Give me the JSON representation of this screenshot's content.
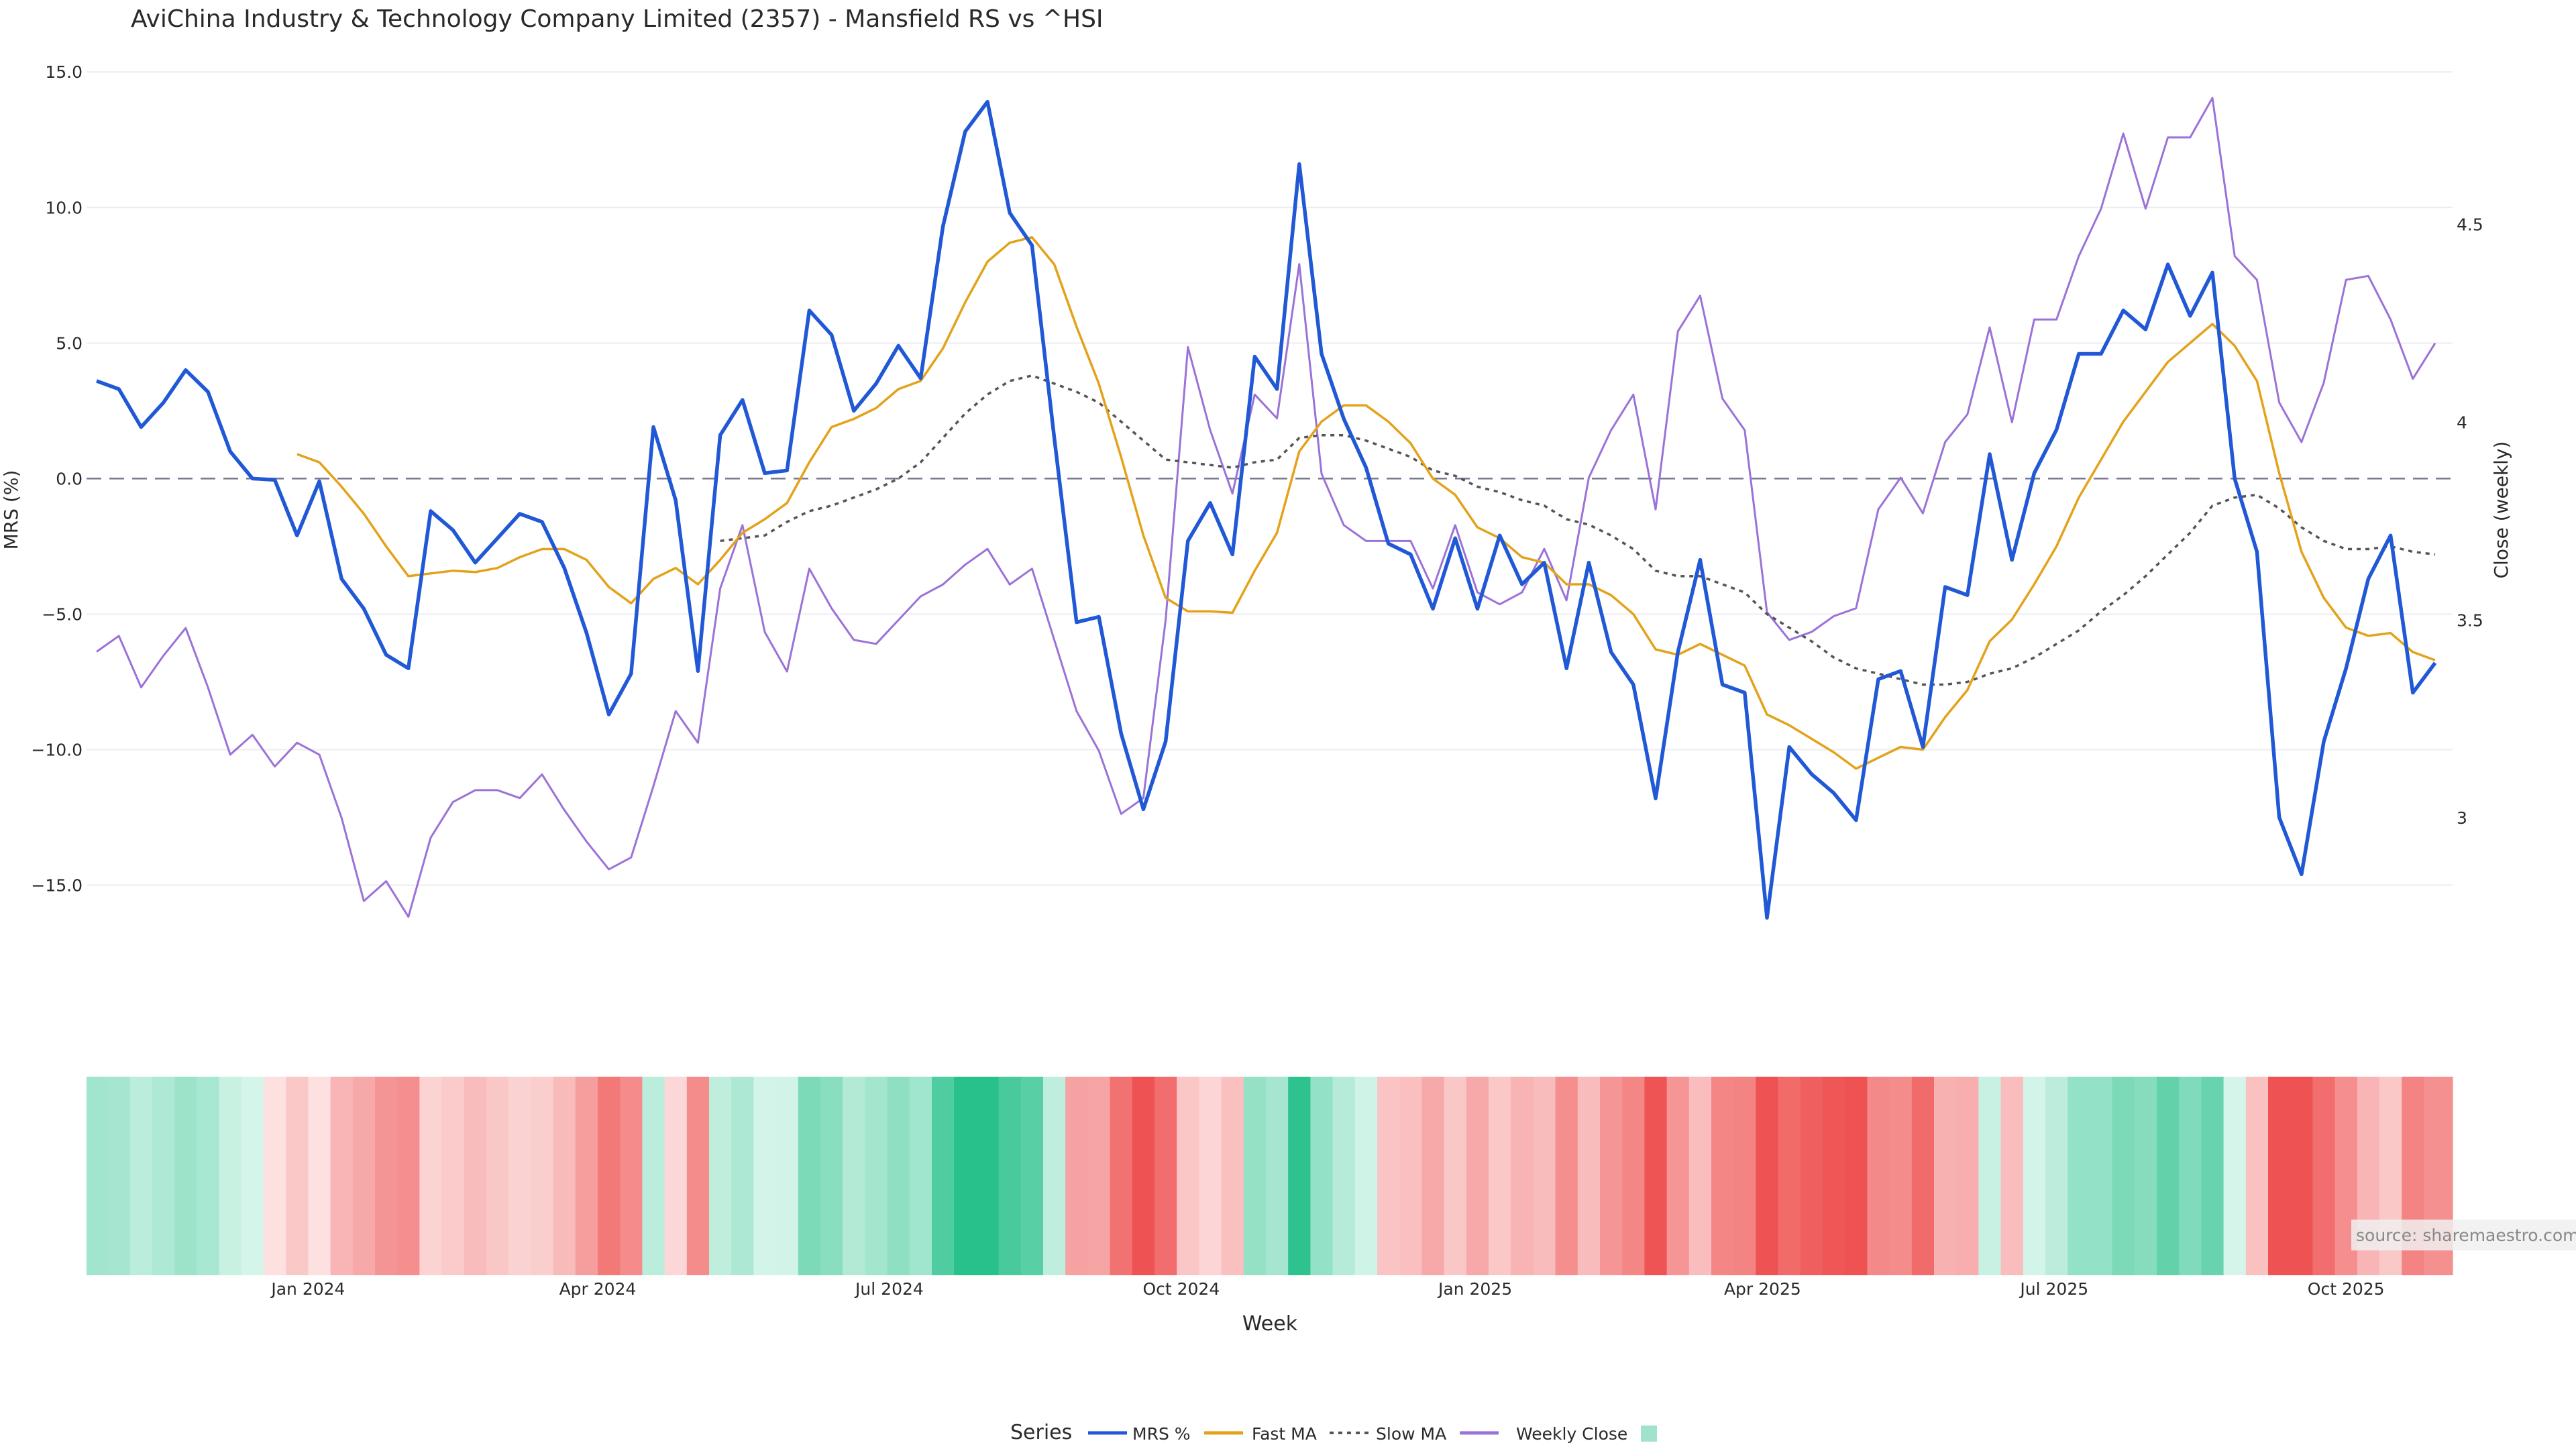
{
  "chart_data": {
    "type": "line",
    "title": "AviChina Industry & Technology Company Limited (2357) - Mansfield RS vs ^HSI",
    "xlabel": "Week",
    "ylabel": "MRS (%)",
    "y2label": "Close (weekly)",
    "ylim": [
      -18.5,
      15.5
    ],
    "y2lim": [
      2.59,
      4.92
    ],
    "yticks": [
      15.0,
      10.0,
      5.0,
      0.0,
      -5.0,
      -10.0,
      -15.0
    ],
    "ytick_labels": [
      "15.0",
      "10.0",
      "5.0",
      "0.0",
      "−5.0",
      "−10.0",
      "−15.0"
    ],
    "y2ticks": [
      4.5,
      4,
      3.5,
      3
    ],
    "y2tick_labels": [
      "4.5",
      "4",
      "3.5",
      "3"
    ],
    "xticks": [
      {
        "label": "Jan 2024",
        "week": 9.5
      },
      {
        "label": "Apr 2024",
        "week": 22.5
      },
      {
        "label": "Jul 2024",
        "week": 35.6
      },
      {
        "label": "Oct 2024",
        "week": 48.7
      },
      {
        "label": "Jan 2025",
        "week": 61.9
      },
      {
        "label": "Apr 2025",
        "week": 74.8
      },
      {
        "label": "Jul 2025",
        "week": 87.9
      },
      {
        "label": "Oct 2025",
        "week": 101.0
      }
    ],
    "zero_line": 0,
    "series": [
      {
        "name": "MRS %",
        "color": "#2158d6",
        "axis": "left",
        "values": [
          3.6,
          3.3,
          1.9,
          2.8,
          4.0,
          3.2,
          1.0,
          0.0,
          -0.05,
          -2.1,
          -0.1,
          -3.7,
          -4.8,
          -6.5,
          -7.0,
          -1.2,
          -1.9,
          -3.1,
          -2.2,
          -1.3,
          -1.6,
          -3.3,
          -5.7,
          -8.7,
          -7.2,
          1.9,
          -0.8,
          -7.1,
          1.6,
          2.9,
          0.2,
          0.3,
          6.2,
          5.3,
          2.5,
          3.5,
          4.9,
          3.7,
          9.3,
          12.8,
          13.9,
          9.8,
          8.6,
          1.5,
          -5.3,
          -5.1,
          -9.4,
          -12.2,
          -9.7,
          -2.3,
          -0.9,
          -2.8,
          4.5,
          3.3,
          11.6,
          4.6,
          2.2,
          0.4,
          -2.4,
          -2.8,
          -4.8,
          -2.2,
          -4.8,
          -2.1,
          -3.9,
          -3.1,
          -7.0,
          -3.1,
          -6.4,
          -7.6,
          -11.8,
          -6.4,
          -3.0,
          -7.6,
          -7.9,
          -16.2,
          -9.9,
          -10.9,
          -11.6,
          -12.6,
          -7.4,
          -7.1,
          -9.9,
          -4.0,
          -4.3,
          0.9,
          -3.0,
          0.2,
          1.8,
          4.6,
          4.6,
          6.2,
          5.5,
          7.9,
          6.0,
          7.6,
          0.0,
          -2.7,
          -12.5,
          -14.6,
          -9.7,
          -7.0,
          -3.7,
          -2.1,
          -7.9,
          -6.8
        ]
      },
      {
        "name": "Fast MA",
        "color": "#e3a21a",
        "axis": "left",
        "values": [
          0.9,
          0.6,
          -0.3,
          -1.3,
          -2.5,
          -3.6,
          -3.5,
          -3.4,
          -3.45,
          -3.3,
          -2.9,
          -2.6,
          -2.6,
          -3.0,
          -4.0,
          -4.6,
          -3.7,
          -3.3,
          -3.9,
          -3.0,
          -2.0,
          -1.5,
          -0.9,
          0.6,
          1.9,
          2.2,
          2.6,
          3.3,
          3.6,
          4.8,
          6.5,
          8.0,
          8.7,
          8.9,
          7.9,
          5.6,
          3.5,
          0.8,
          -2.1,
          -4.4,
          -4.9,
          -4.9,
          -4.95,
          -3.4,
          -2.0,
          1.0,
          2.1,
          2.7,
          2.7,
          2.1,
          1.3,
          0.0,
          -0.6,
          -1.8,
          -2.2,
          -2.9,
          -3.1,
          -3.9,
          -3.9,
          -4.3,
          -5.0,
          -6.3,
          -6.5,
          -6.1,
          -6.5,
          -6.9,
          -8.7,
          -9.1,
          -9.6,
          -10.1,
          -10.7,
          -10.3,
          -9.9,
          -10.0,
          -8.8,
          -7.8,
          -6.0,
          -5.2,
          -3.9,
          -2.5,
          -0.7,
          0.7,
          2.1,
          3.2,
          4.3,
          5.0,
          5.7,
          4.9,
          3.6,
          0.2,
          -2.7,
          -4.4,
          -5.5,
          -5.8,
          -5.7,
          -6.4,
          -6.7
        ]
      },
      {
        "name": "Slow MA",
        "color": "#555555",
        "axis": "left",
        "dash": true,
        "values": [
          -2.3,
          -2.2,
          -2.1,
          -1.6,
          -1.2,
          -1.0,
          -0.7,
          -0.4,
          0.0,
          0.6,
          1.5,
          2.4,
          3.1,
          3.6,
          3.8,
          3.5,
          3.2,
          2.8,
          2.1,
          1.4,
          0.7,
          0.6,
          0.5,
          0.4,
          0.6,
          0.7,
          1.5,
          1.6,
          1.6,
          1.4,
          1.1,
          0.8,
          0.3,
          0.1,
          -0.3,
          -0.5,
          -0.8,
          -1.0,
          -1.5,
          -1.7,
          -2.1,
          -2.6,
          -3.4,
          -3.6,
          -3.6,
          -3.9,
          -4.2,
          -5.0,
          -5.5,
          -6.0,
          -6.6,
          -7.0,
          -7.2,
          -7.4,
          -7.6,
          -7.6,
          -7.5,
          -7.2,
          -7.0,
          -6.6,
          -6.1,
          -5.6,
          -4.9,
          -4.3,
          -3.6,
          -2.8,
          -2.0,
          -1.0,
          -0.7,
          -0.6,
          -1.1,
          -1.8,
          -2.3,
          -2.6,
          -2.6,
          -2.5,
          -2.7,
          -2.8
        ]
      },
      {
        "name": "Weekly Close",
        "color": "#9b72d8",
        "axis": "right",
        "values": [
          3.42,
          3.46,
          3.33,
          3.41,
          3.48,
          3.33,
          3.16,
          3.21,
          3.13,
          3.19,
          3.16,
          3.0,
          2.79,
          2.84,
          2.75,
          2.95,
          3.04,
          3.07,
          3.07,
          3.05,
          3.11,
          3.02,
          2.94,
          2.87,
          2.9,
          3.08,
          3.27,
          3.19,
          3.58,
          3.74,
          3.47,
          3.37,
          3.63,
          3.53,
          3.45,
          3.44,
          3.5,
          3.56,
          3.59,
          3.64,
          3.68,
          3.59,
          3.63,
          3.45,
          3.27,
          3.17,
          3.01,
          3.05,
          3.5,
          4.19,
          3.98,
          3.82,
          4.07,
          4.01,
          4.4,
          3.87,
          3.74,
          3.7,
          3.7,
          3.7,
          3.58,
          3.74,
          3.57,
          3.54,
          3.57,
          3.68,
          3.55,
          3.86,
          3.98,
          4.07,
          3.78,
          4.23,
          4.32,
          4.06,
          3.98,
          3.52,
          3.45,
          3.47,
          3.51,
          3.53,
          3.78,
          3.86,
          3.77,
          3.95,
          4.02,
          4.24,
          4.0,
          4.26,
          4.26,
          4.42,
          4.54,
          4.73,
          4.54,
          4.72,
          4.72,
          4.82,
          4.42,
          4.36,
          4.05,
          3.95,
          4.1,
          4.36,
          4.37,
          4.26,
          4.11,
          4.2
        ]
      }
    ],
    "heatmap": {
      "source_series": "MRS %",
      "positive_colors": [
        "#d6f5ea",
        "#28c08b"
      ],
      "negative_colors": [
        "#fde1e1",
        "#ef5252"
      ],
      "saturation_value": 12
    },
    "legend": {
      "title": "Series",
      "position": "bottom",
      "extra_swatch_color": "#9fe3cb"
    },
    "source_note": "source: sharemaestro.com"
  }
}
